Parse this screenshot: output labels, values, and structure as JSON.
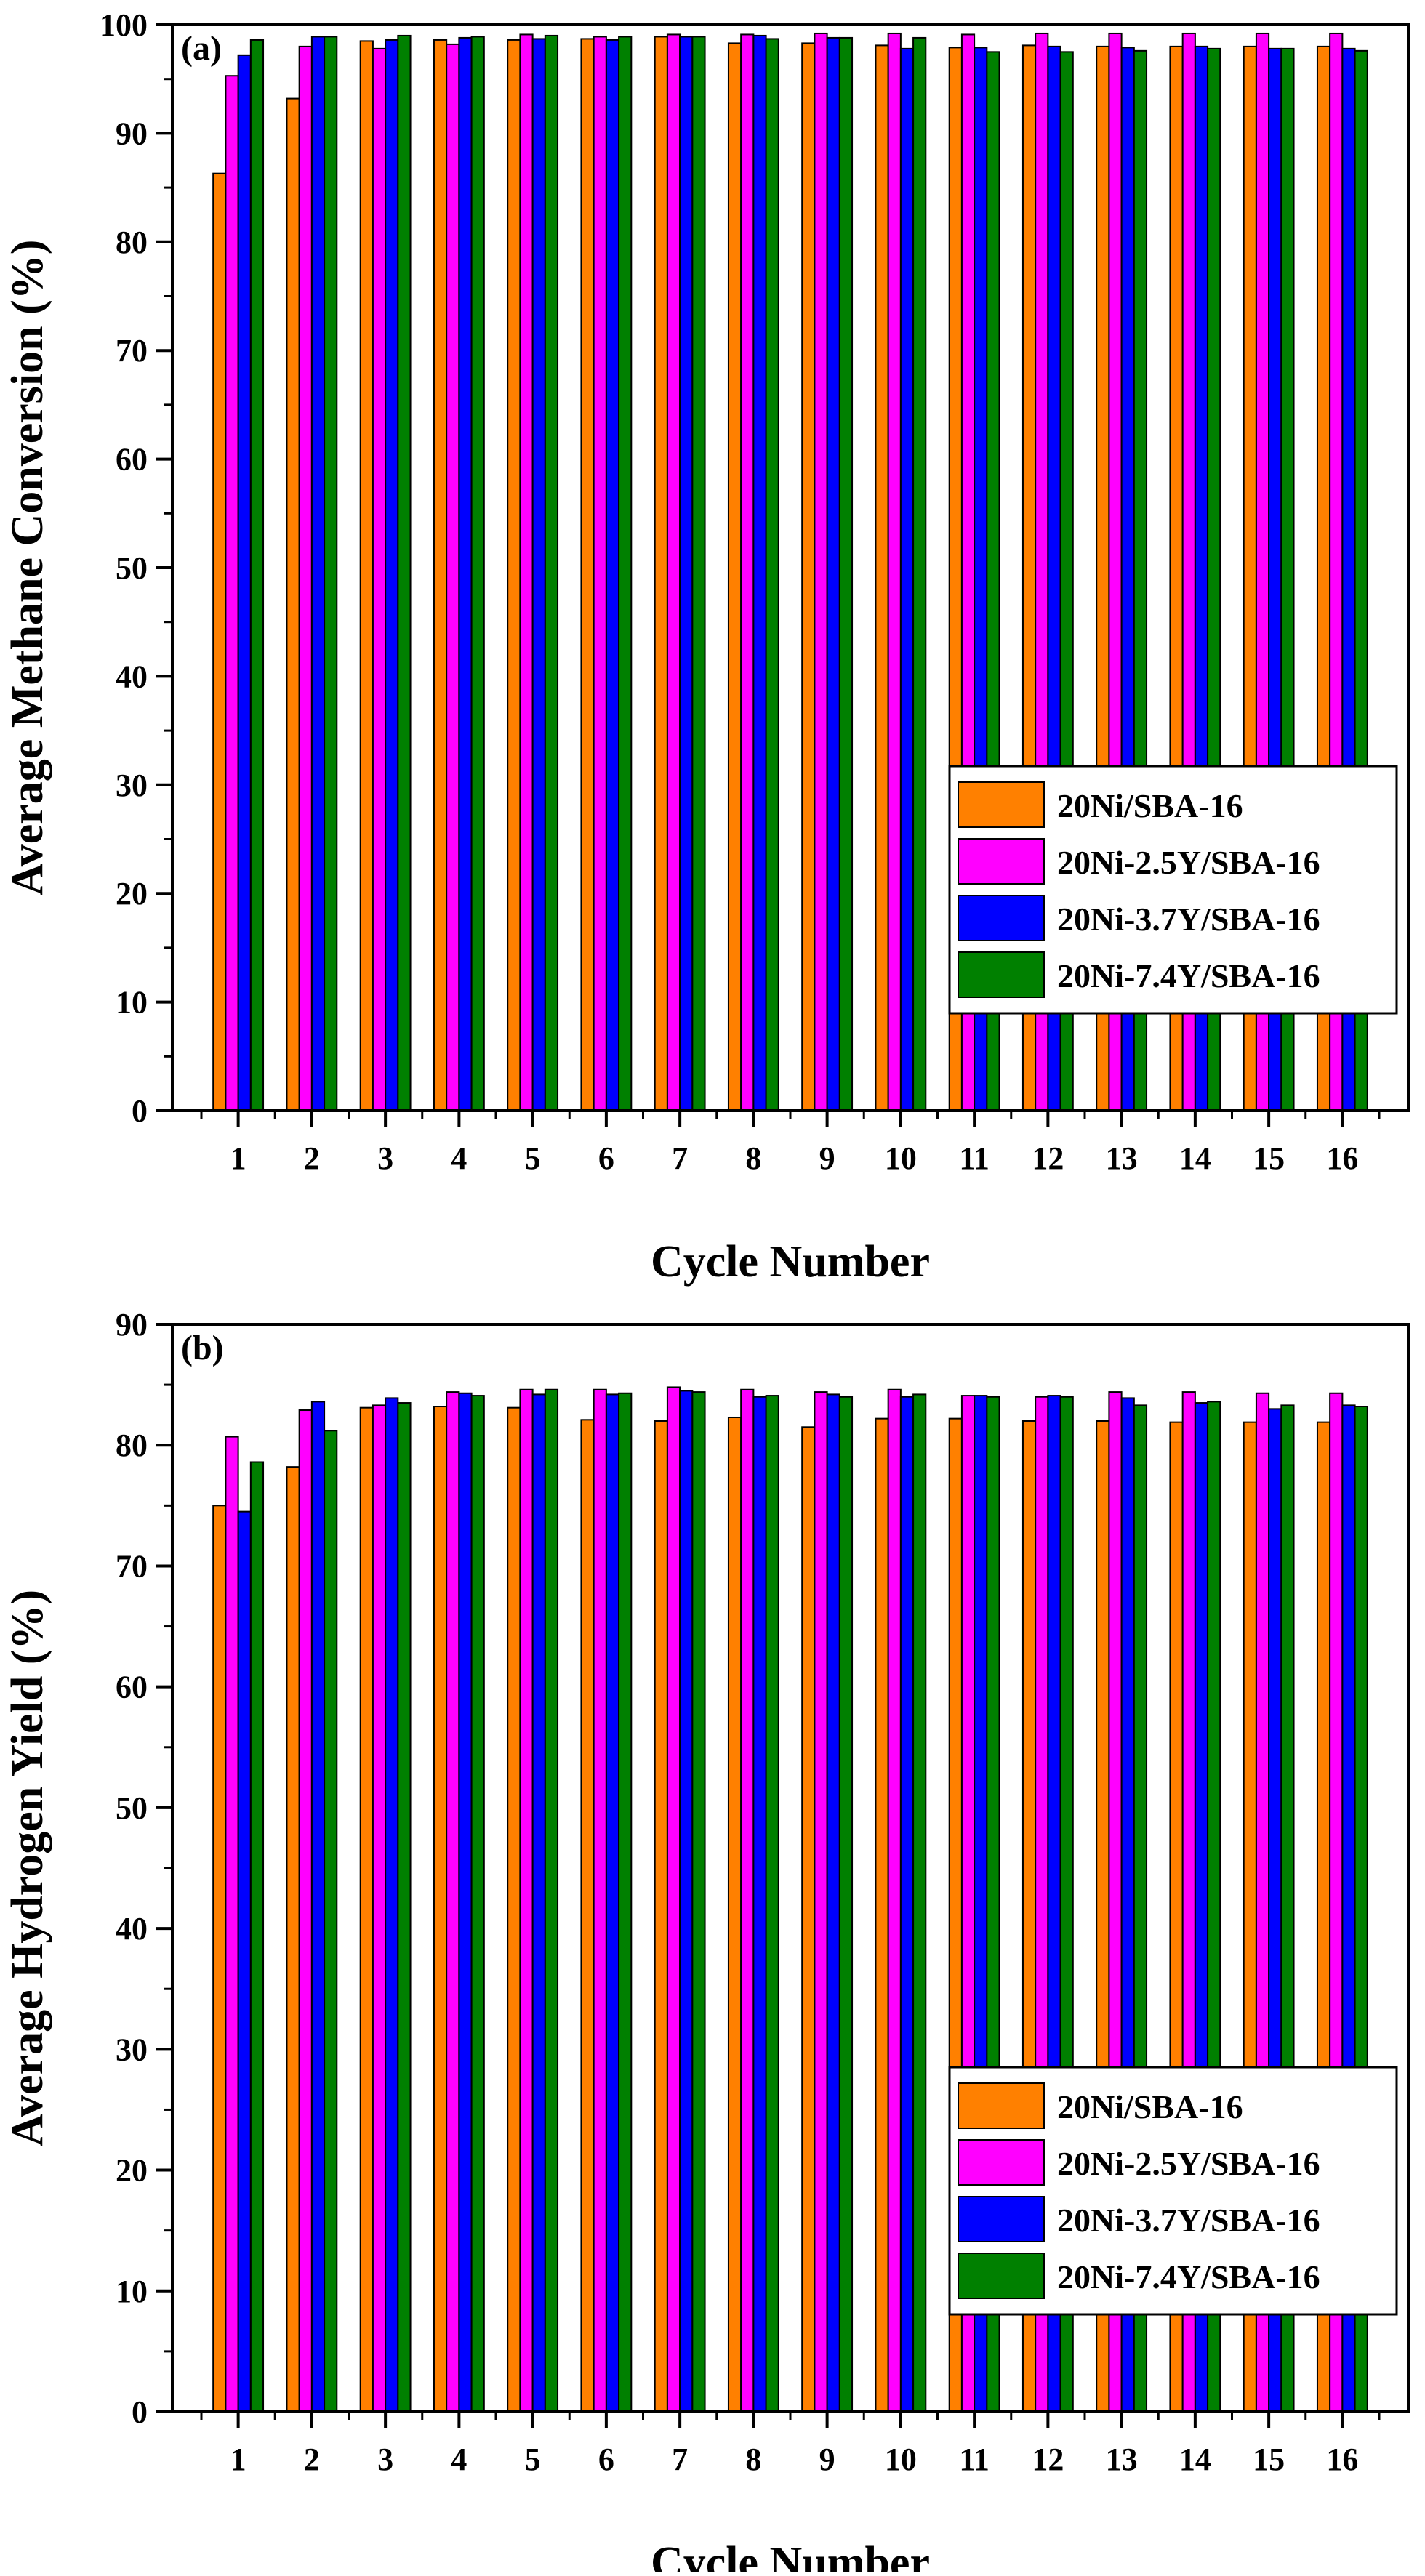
{
  "chart_data": [
    {
      "type": "bar",
      "panel_label": "(a)",
      "title": "",
      "xlabel": "Cycle Number",
      "ylabel": "Average Methane Conversion (%)",
      "ylim": [
        0,
        100
      ],
      "yticks": [
        0,
        10,
        20,
        30,
        40,
        50,
        60,
        70,
        80,
        90,
        100
      ],
      "categories": [
        "1",
        "2",
        "3",
        "4",
        "5",
        "6",
        "7",
        "8",
        "9",
        "10",
        "11",
        "12",
        "13",
        "14",
        "15",
        "16"
      ],
      "legend_position": "bottom-right",
      "series": [
        {
          "name": "20Ni/SBA-16",
          "color": "#ff8000",
          "values": [
            86.3,
            93.2,
            98.5,
            98.6,
            98.6,
            98.7,
            98.9,
            98.3,
            98.3,
            98.1,
            97.9,
            98.1,
            98.0,
            98.0,
            98.0,
            98.0
          ]
        },
        {
          "name": "20Ni-2.5Y/SBA-16",
          "color": "#ff00ff",
          "values": [
            95.3,
            98.0,
            97.8,
            98.2,
            99.1,
            98.9,
            99.1,
            99.1,
            99.2,
            99.2,
            99.1,
            99.2,
            99.2,
            99.2,
            99.2,
            99.2
          ]
        },
        {
          "name": "20Ni-3.7Y/SBA-16",
          "color": "#0000ff",
          "values": [
            97.2,
            98.9,
            98.6,
            98.8,
            98.7,
            98.6,
            98.9,
            99.0,
            98.8,
            97.8,
            97.9,
            98.0,
            97.9,
            98.0,
            97.8,
            97.8
          ]
        },
        {
          "name": "20Ni-7.4Y/SBA-16",
          "color": "#008000",
          "values": [
            98.6,
            98.9,
            99.0,
            98.9,
            99.0,
            98.9,
            98.9,
            98.7,
            98.8,
            98.8,
            97.5,
            97.5,
            97.6,
            97.8,
            97.8,
            97.6
          ]
        }
      ]
    },
    {
      "type": "bar",
      "panel_label": "(b)",
      "title": "",
      "xlabel": "Cycle Number",
      "ylabel": "Average Hydrogen Yield (%)",
      "ylim": [
        0,
        90
      ],
      "yticks": [
        0,
        10,
        20,
        30,
        40,
        50,
        60,
        70,
        80,
        90
      ],
      "categories": [
        "1",
        "2",
        "3",
        "4",
        "5",
        "6",
        "7",
        "8",
        "9",
        "10",
        "11",
        "12",
        "13",
        "14",
        "15",
        "16"
      ],
      "legend_position": "bottom-right",
      "series": [
        {
          "name": "20Ni/SBA-16",
          "color": "#ff8000",
          "values": [
            75.0,
            78.2,
            83.1,
            83.2,
            83.1,
            82.1,
            82.0,
            82.3,
            81.5,
            82.2,
            82.2,
            82.0,
            82.0,
            81.9,
            81.9,
            81.9
          ]
        },
        {
          "name": "20Ni-2.5Y/SBA-16",
          "color": "#ff00ff",
          "values": [
            80.7,
            82.9,
            83.3,
            84.4,
            84.6,
            84.6,
            84.8,
            84.6,
            84.4,
            84.6,
            84.1,
            84.0,
            84.4,
            84.4,
            84.3,
            84.3
          ]
        },
        {
          "name": "20Ni-3.7Y/SBA-16",
          "color": "#0000ff",
          "values": [
            74.5,
            83.6,
            83.9,
            84.3,
            84.2,
            84.2,
            84.5,
            84.0,
            84.2,
            84.0,
            84.1,
            84.1,
            83.9,
            83.5,
            83.0,
            83.3
          ]
        },
        {
          "name": "20Ni-7.4Y/SBA-16",
          "color": "#008000",
          "values": [
            78.6,
            81.2,
            83.5,
            84.1,
            84.6,
            84.3,
            84.4,
            84.1,
            84.0,
            84.2,
            84.0,
            84.0,
            83.3,
            83.6,
            83.3,
            83.2
          ]
        }
      ]
    }
  ]
}
